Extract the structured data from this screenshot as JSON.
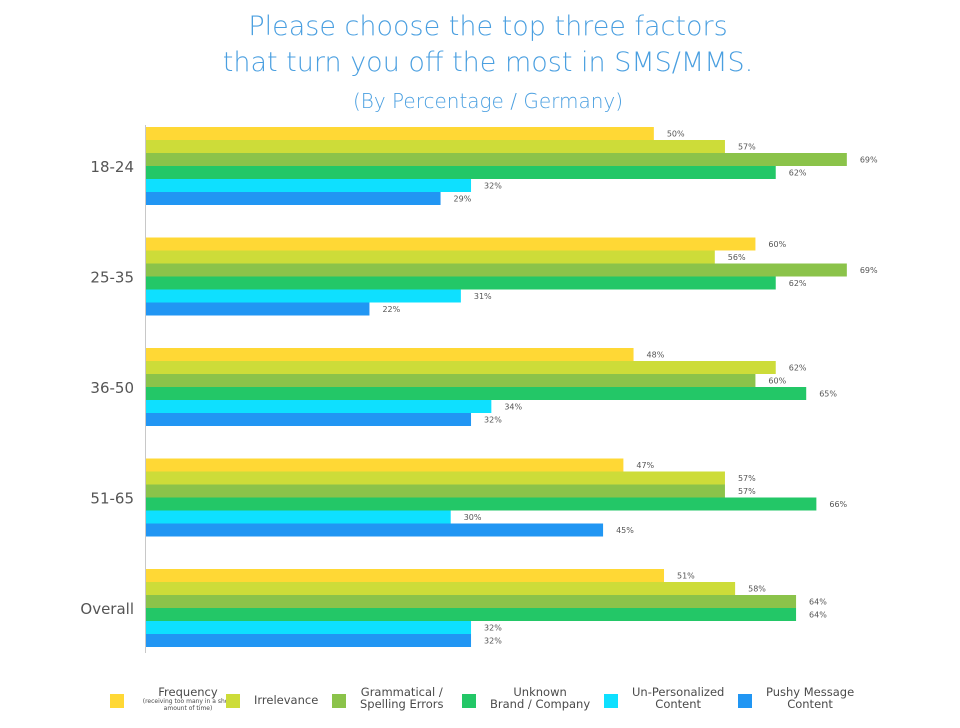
{
  "title_line1": "Please choose the top three factors",
  "title_line2": "that turn you off the most in SMS/MMS.",
  "subtitle": "(By Percentage / Germany)",
  "chart_data": {
    "type": "bar",
    "orientation": "horizontal",
    "categories": [
      "18-24",
      "25-35",
      "36-50",
      "51-65",
      "Overall"
    ],
    "xlim": [
      0,
      70
    ],
    "grid": false,
    "legend_position": "bottom",
    "series": [
      {
        "name": "Frequency",
        "color": "#ffd835",
        "values": [
          50,
          60,
          48,
          47,
          51
        ]
      },
      {
        "name": "Irrelevance",
        "color": "#cddc39",
        "values": [
          57,
          56,
          62,
          57,
          58
        ]
      },
      {
        "name": "Grammatical / Spelling Errors",
        "color": "#8bc34a",
        "values": [
          69,
          69,
          60,
          57,
          64
        ]
      },
      {
        "name": "Unknown Brand / Company",
        "color": "#23c767",
        "values": [
          62,
          62,
          65,
          66,
          64
        ]
      },
      {
        "name": "Un-Personalized Content",
        "color": "#0ee0ff",
        "values": [
          32,
          31,
          34,
          30,
          32
        ]
      },
      {
        "name": "Pushy Message Content",
        "color": "#2196f3",
        "values": [
          29,
          22,
          32,
          45,
          32
        ]
      }
    ],
    "value_suffix": "%"
  },
  "legend": [
    {
      "line1": "Frequency",
      "line2": "",
      "sub": "(receiving too many in a short amount of time)",
      "color": "#ffd835"
    },
    {
      "line1": "Irrelevance",
      "line2": "",
      "sub": "",
      "color": "#cddc39"
    },
    {
      "line1": "Grammatical /",
      "line2": "Spelling Errors",
      "sub": "",
      "color": "#8bc34a"
    },
    {
      "line1": "Unknown",
      "line2": "Brand / Company",
      "sub": "",
      "color": "#23c767"
    },
    {
      "line1": "Un-Personalized",
      "line2": "Content",
      "sub": "",
      "color": "#0ee0ff"
    },
    {
      "line1": "Pushy Message",
      "line2": "Content",
      "sub": "",
      "color": "#2196f3"
    }
  ]
}
